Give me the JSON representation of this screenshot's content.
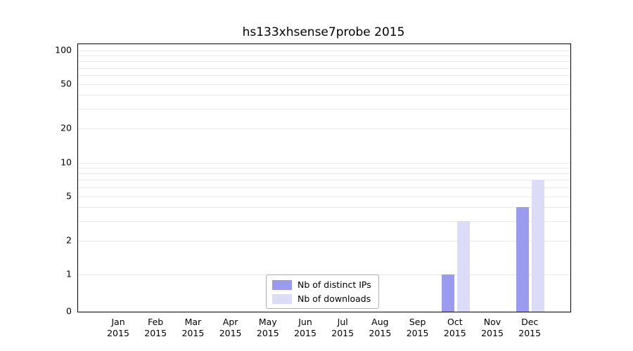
{
  "chart_data": {
    "type": "bar",
    "title": "hs133xhsense7probe 2015",
    "year": "2015",
    "categories": [
      "Jan",
      "Feb",
      "Mar",
      "Apr",
      "May",
      "Jun",
      "Jul",
      "Aug",
      "Sep",
      "Oct",
      "Nov",
      "Dec"
    ],
    "series": [
      {
        "name": "Nb of distinct IPs",
        "color": "#9a9aee",
        "values": [
          0,
          0,
          0,
          0,
          0,
          0,
          0,
          0,
          0,
          1,
          0,
          4
        ]
      },
      {
        "name": "Nb of downloads",
        "color": "#dcdcf8",
        "values": [
          0,
          0,
          0,
          0,
          0,
          0,
          0,
          0,
          0,
          3,
          0,
          7
        ]
      }
    ],
    "y_ticks": [
      0,
      1,
      2,
      5,
      10,
      20,
      50,
      100
    ],
    "y_scale": "symlog",
    "ylim": [
      0,
      100
    ],
    "grid": "horizontal-minor",
    "gridline_values": [
      1,
      2,
      3,
      4,
      5,
      6,
      7,
      8,
      9,
      10,
      20,
      30,
      40,
      50,
      60,
      70,
      80,
      90,
      100
    ],
    "legend_position": "bottom-center",
    "colors": {
      "spine": "#000000",
      "gridline": "#e8e8e8"
    }
  }
}
